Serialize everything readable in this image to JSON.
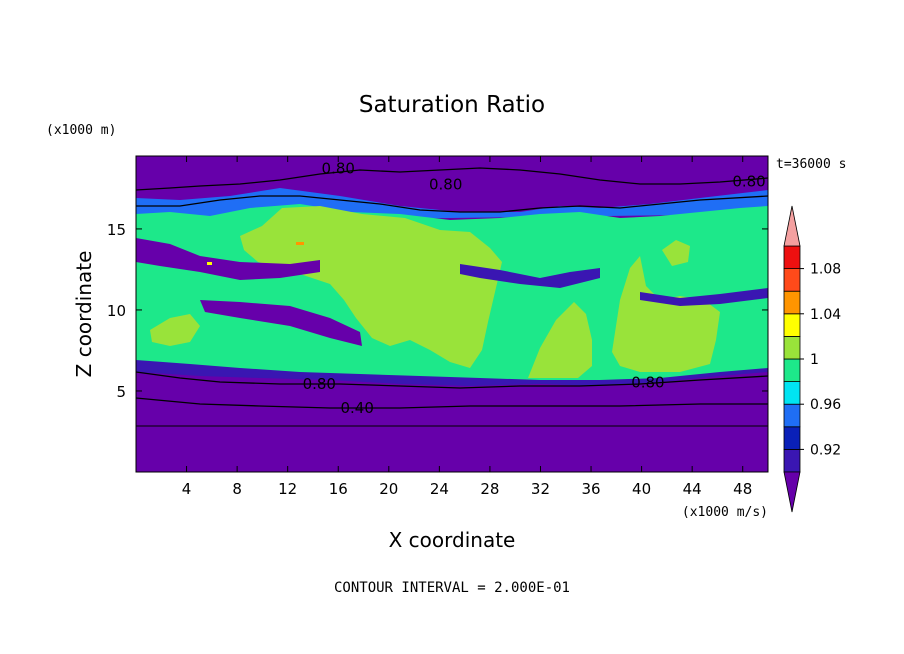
{
  "chart_data": {
    "type": "heatmap",
    "title": "Saturation Ratio",
    "xlabel": "X coordinate",
    "ylabel": "Z coordinate",
    "x_unit": "(x1000 m/s)",
    "y_unit": "(x1000 m)",
    "time_label": "t=36000 s",
    "footer": "CONTOUR INTERVAL = 2.000E-01",
    "xlim": [
      0,
      50
    ],
    "ylim": [
      0,
      19.5
    ],
    "x_ticks": [
      4,
      8,
      12,
      16,
      20,
      24,
      28,
      32,
      36,
      40,
      44,
      48
    ],
    "y_ticks": [
      5,
      10,
      15
    ],
    "contour_labels": [
      {
        "text": "0.80",
        "x": 16,
        "y": 18.8
      },
      {
        "text": "0.80",
        "x": 24.5,
        "y": 17.8
      },
      {
        "text": "0.80",
        "x": 48.5,
        "y": 18.0
      },
      {
        "text": "0.80",
        "x": 14.5,
        "y": 5.5
      },
      {
        "text": "0.80",
        "x": 40.5,
        "y": 5.6
      },
      {
        "text": "0.40",
        "x": 17.5,
        "y": 4.0
      }
    ],
    "colorbar": {
      "labels": [
        "1.08",
        "1.04",
        "1",
        "0.96",
        "0.92"
      ],
      "label_values": [
        1.08,
        1.04,
        1.0,
        0.96,
        0.92
      ],
      "levels": [
        0.9,
        0.92,
        0.94,
        0.96,
        0.98,
        1.0,
        1.02,
        1.04,
        1.06,
        1.08,
        1.1
      ],
      "colors": [
        "#6600aa",
        "#3a16b2",
        "#0a20b8",
        "#1f6ef5",
        "#00e4f2",
        "#1de88a",
        "#99e33a",
        "#ffff00",
        "#ff9500",
        "#ff4a1a",
        "#ee1010",
        "#f4a0a0"
      ],
      "extend": "both"
    }
  }
}
